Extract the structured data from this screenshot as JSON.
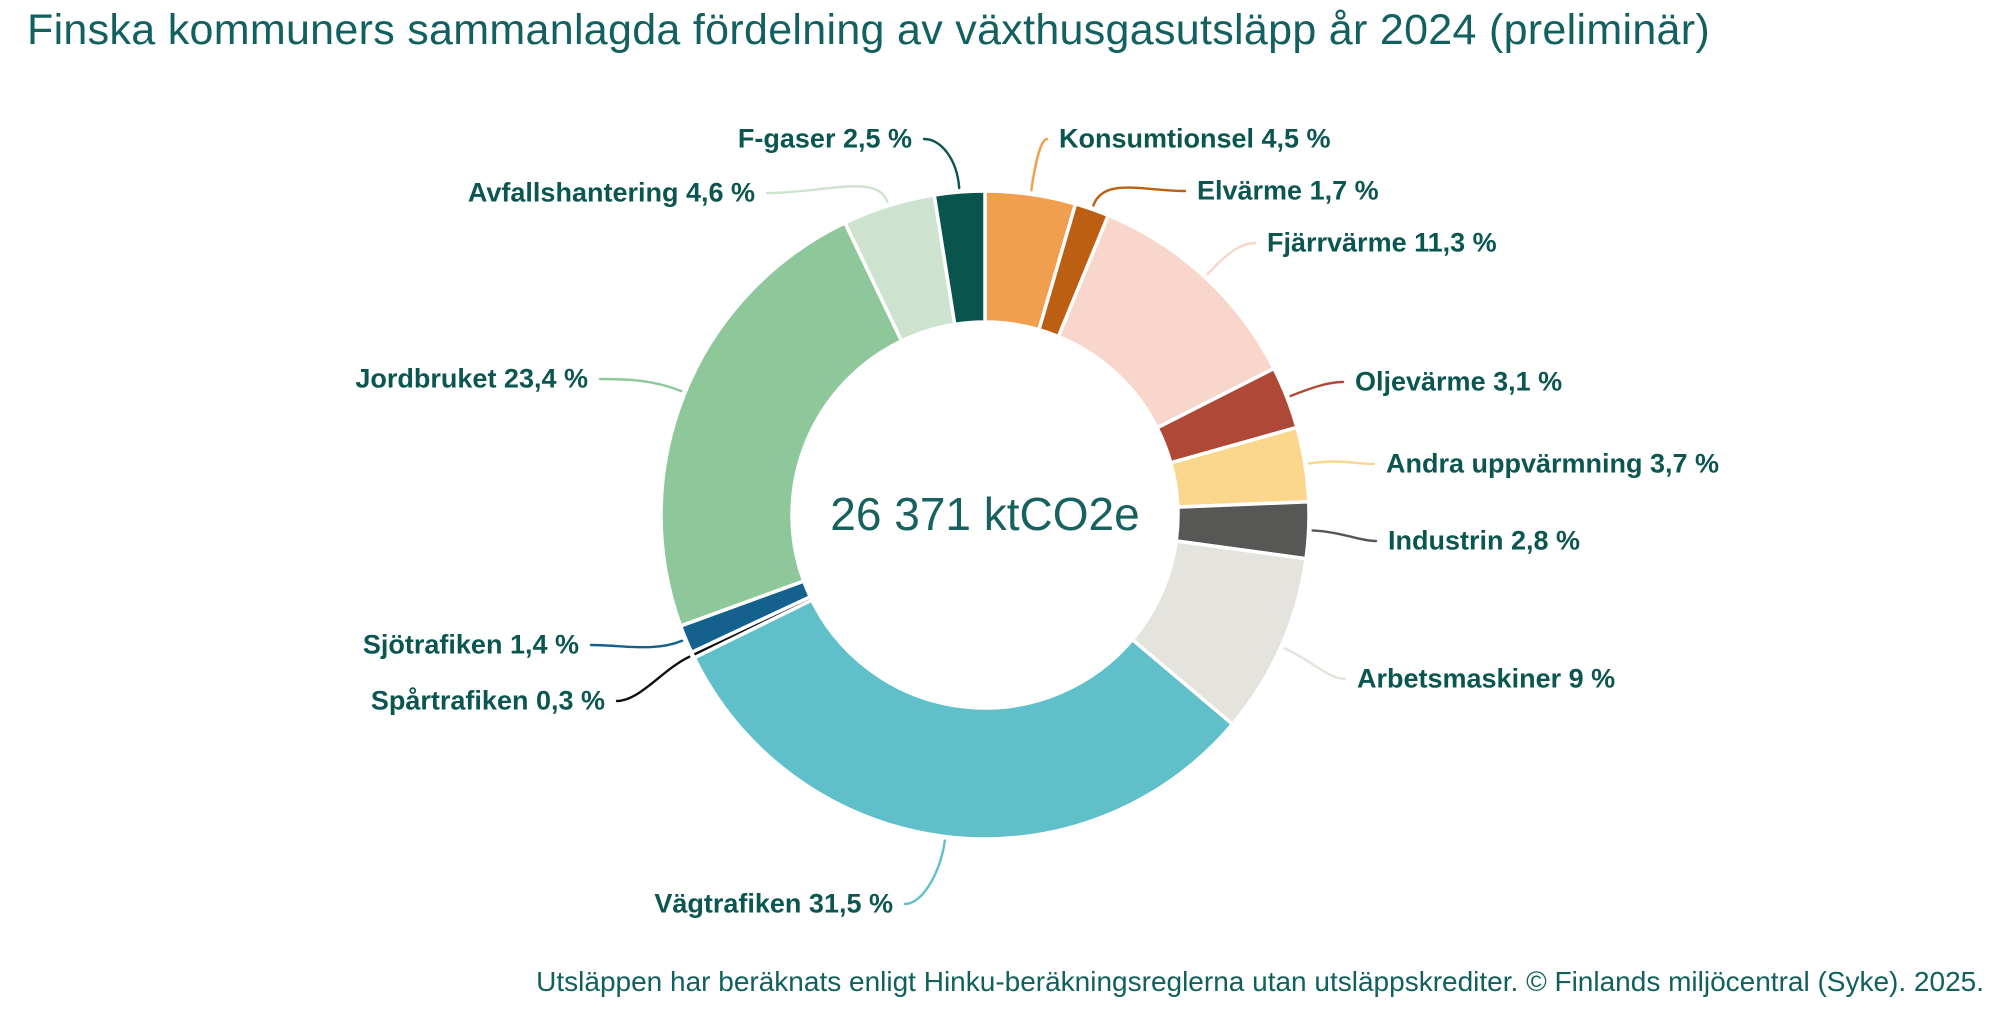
{
  "title": "Finska kommuners sammanlagda fördelning av växthusgasutsläpp år 2024 (preliminär)",
  "center_label": "26 371 ktCO2e",
  "footnote": "Utsläppen har beräknats enligt Hinku-beräkningsreglerna utan utsläppskrediter. © Finlands miljöcentral (Syke). 2025.",
  "colors": {
    "background": "#ffffff",
    "title_text": "#12605f",
    "label_text": "#0b5650",
    "center_text": "#17625f",
    "footnote_text": "#11605e",
    "slice_gap": "#ffffff"
  },
  "chart_data": {
    "type": "pie",
    "subtype": "donut",
    "title": "Finska kommuners sammanlagda fördelning av växthusgasutsläpp år 2024 (preliminär)",
    "center_label": "26 371 ktCO2e",
    "total_value": 26371,
    "total_unit": "ktCO2e",
    "value_unit": "%",
    "start_angle_deg": 0,
    "direction": "clockwise",
    "legend_position": "outside-callouts",
    "slices": [
      {
        "label": "Konsumtionsel",
        "value": 4.5,
        "display": "Konsumtionsel 4,5 %",
        "color": "#ef9f4d"
      },
      {
        "label": "Elvärme",
        "value": 1.7,
        "display": "Elvärme 1,7 %",
        "color": "#bd5f12"
      },
      {
        "label": "Fjärrvärme",
        "value": 11.3,
        "display": "Fjärrvärme 11,3 %",
        "color": "#f9d6cb"
      },
      {
        "label": "Oljevärme",
        "value": 3.1,
        "display": "Oljevärme 3,1 %",
        "color": "#af4937"
      },
      {
        "label": "Andra uppvärmning",
        "value": 3.7,
        "display": "Andra uppvärmning 3,7 %",
        "color": "#fbd78e"
      },
      {
        "label": "Industrin",
        "value": 2.8,
        "display": "Industrin 2,8 %",
        "color": "#575756"
      },
      {
        "label": "Arbetsmaskiner",
        "value": 9,
        "display": "Arbetsmaskiner 9 %",
        "color": "#e5e3dd"
      },
      {
        "label": "Vägtrafiken",
        "value": 31.5,
        "display": "Vägtrafiken 31,5 %",
        "color": "#5fc0c9"
      },
      {
        "label": "Spårtrafiken",
        "value": 0.3,
        "display": "Spårtrafiken 0,3 %",
        "color": "#0f0f0f"
      },
      {
        "label": "Sjötrafiken",
        "value": 1.4,
        "display": "Sjötrafiken 1,4 %",
        "color": "#15618d"
      },
      {
        "label": "Jordbruket",
        "value": 23.4,
        "display": "Jordbruket 23,4 %",
        "color": "#8ec79a"
      },
      {
        "label": "Avfallshantering",
        "value": 4.6,
        "display": "Avfallshantering 4,6 %",
        "color": "#cde3d0"
      },
      {
        "label": "F-gaser",
        "value": 2.5,
        "display": "F-gaser 2,5 %",
        "color": "#0a544e"
      }
    ]
  }
}
